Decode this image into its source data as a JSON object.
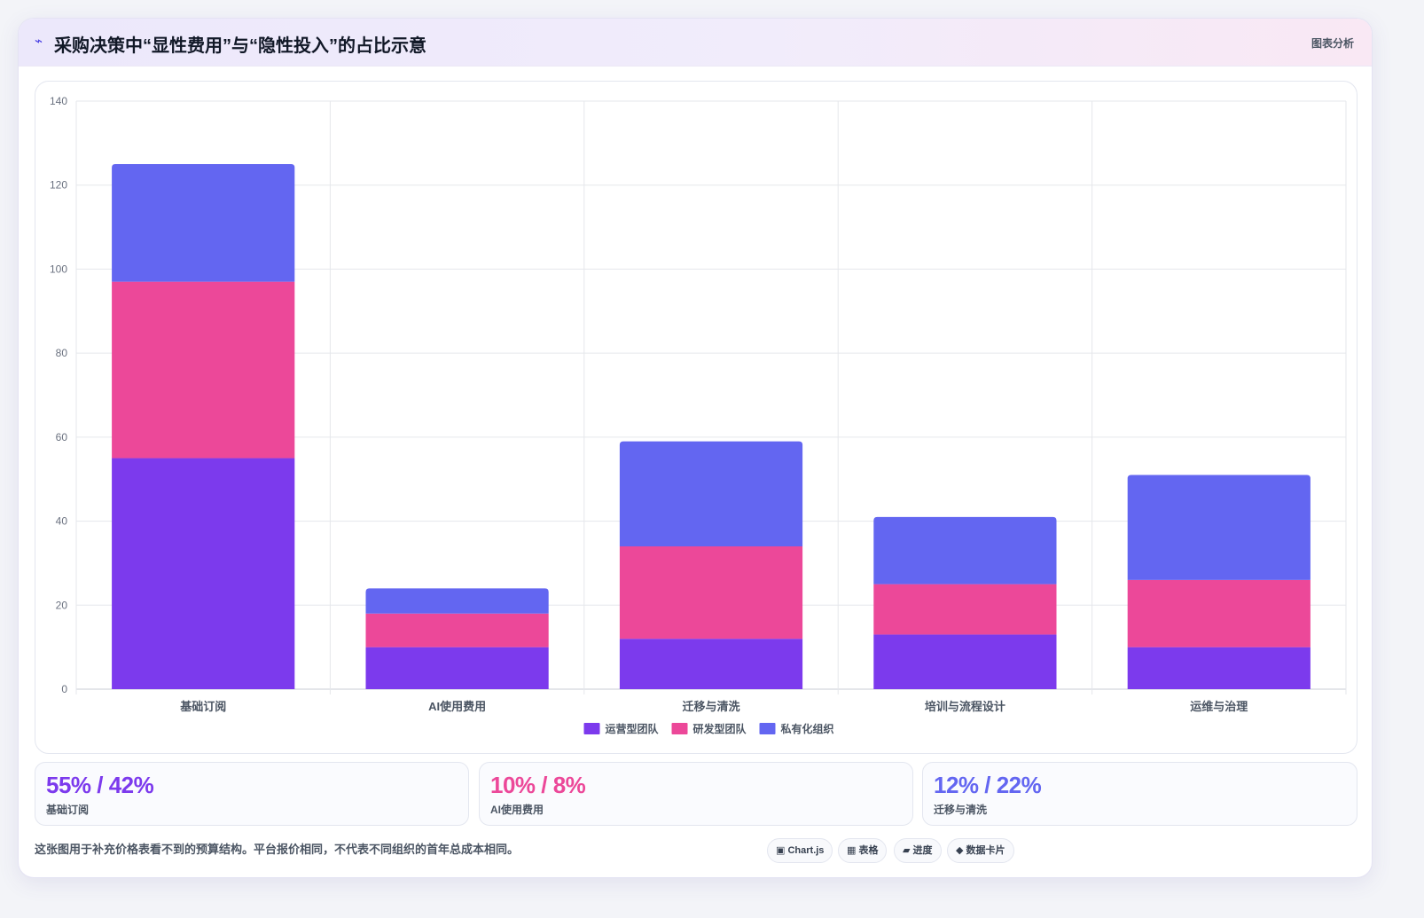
{
  "header": {
    "icon": "lightning-icon",
    "title": "采购决策中“显性费用”与“隐性投入”的占比示意",
    "link_label": "图表分析"
  },
  "chart_data": {
    "type": "bar",
    "stacked": true,
    "categories": [
      "基础订阅",
      "AI使用费用",
      "迁移与清洗",
      "培训与流程设计",
      "运维与治理"
    ],
    "series": [
      {
        "name": "运营型团队",
        "color": "#7c3aed",
        "values": [
          55,
          10,
          12,
          13,
          10
        ]
      },
      {
        "name": "研发型团队",
        "color": "#ec4899",
        "values": [
          42,
          8,
          22,
          12,
          16
        ]
      },
      {
        "name": "私有化组织",
        "color": "#6366f1",
        "values": [
          28,
          6,
          25,
          16,
          25
        ]
      }
    ],
    "ylim": [
      0,
      140
    ],
    "yticks": [
      0,
      20,
      40,
      60,
      80,
      100,
      120,
      140
    ],
    "grid": true,
    "legend": "bottom-center"
  },
  "stats": [
    {
      "value": "55% / 42%",
      "label": "基础订阅",
      "color": "#7c3aed"
    },
    {
      "value": "10% / 8%",
      "label": "AI使用费用",
      "color": "#ec4899"
    },
    {
      "value": "12% / 22%",
      "label": "迁移与清洗",
      "color": "#6366f1"
    }
  ],
  "footer": {
    "note": "这张图用于补充价格表看不到的预算结构。平台报价相同，不代表不同组织的首年总成本相同。",
    "tags": [
      {
        "icon": "square-icon",
        "glyph": "▣",
        "label": "Chart.js"
      },
      {
        "icon": "grid-icon",
        "glyph": "▦",
        "label": "表格"
      },
      {
        "icon": "progress-icon",
        "glyph": "▰",
        "label": "进度"
      },
      {
        "icon": "diamond-icon",
        "glyph": "◆",
        "label": "数据卡片"
      }
    ]
  }
}
